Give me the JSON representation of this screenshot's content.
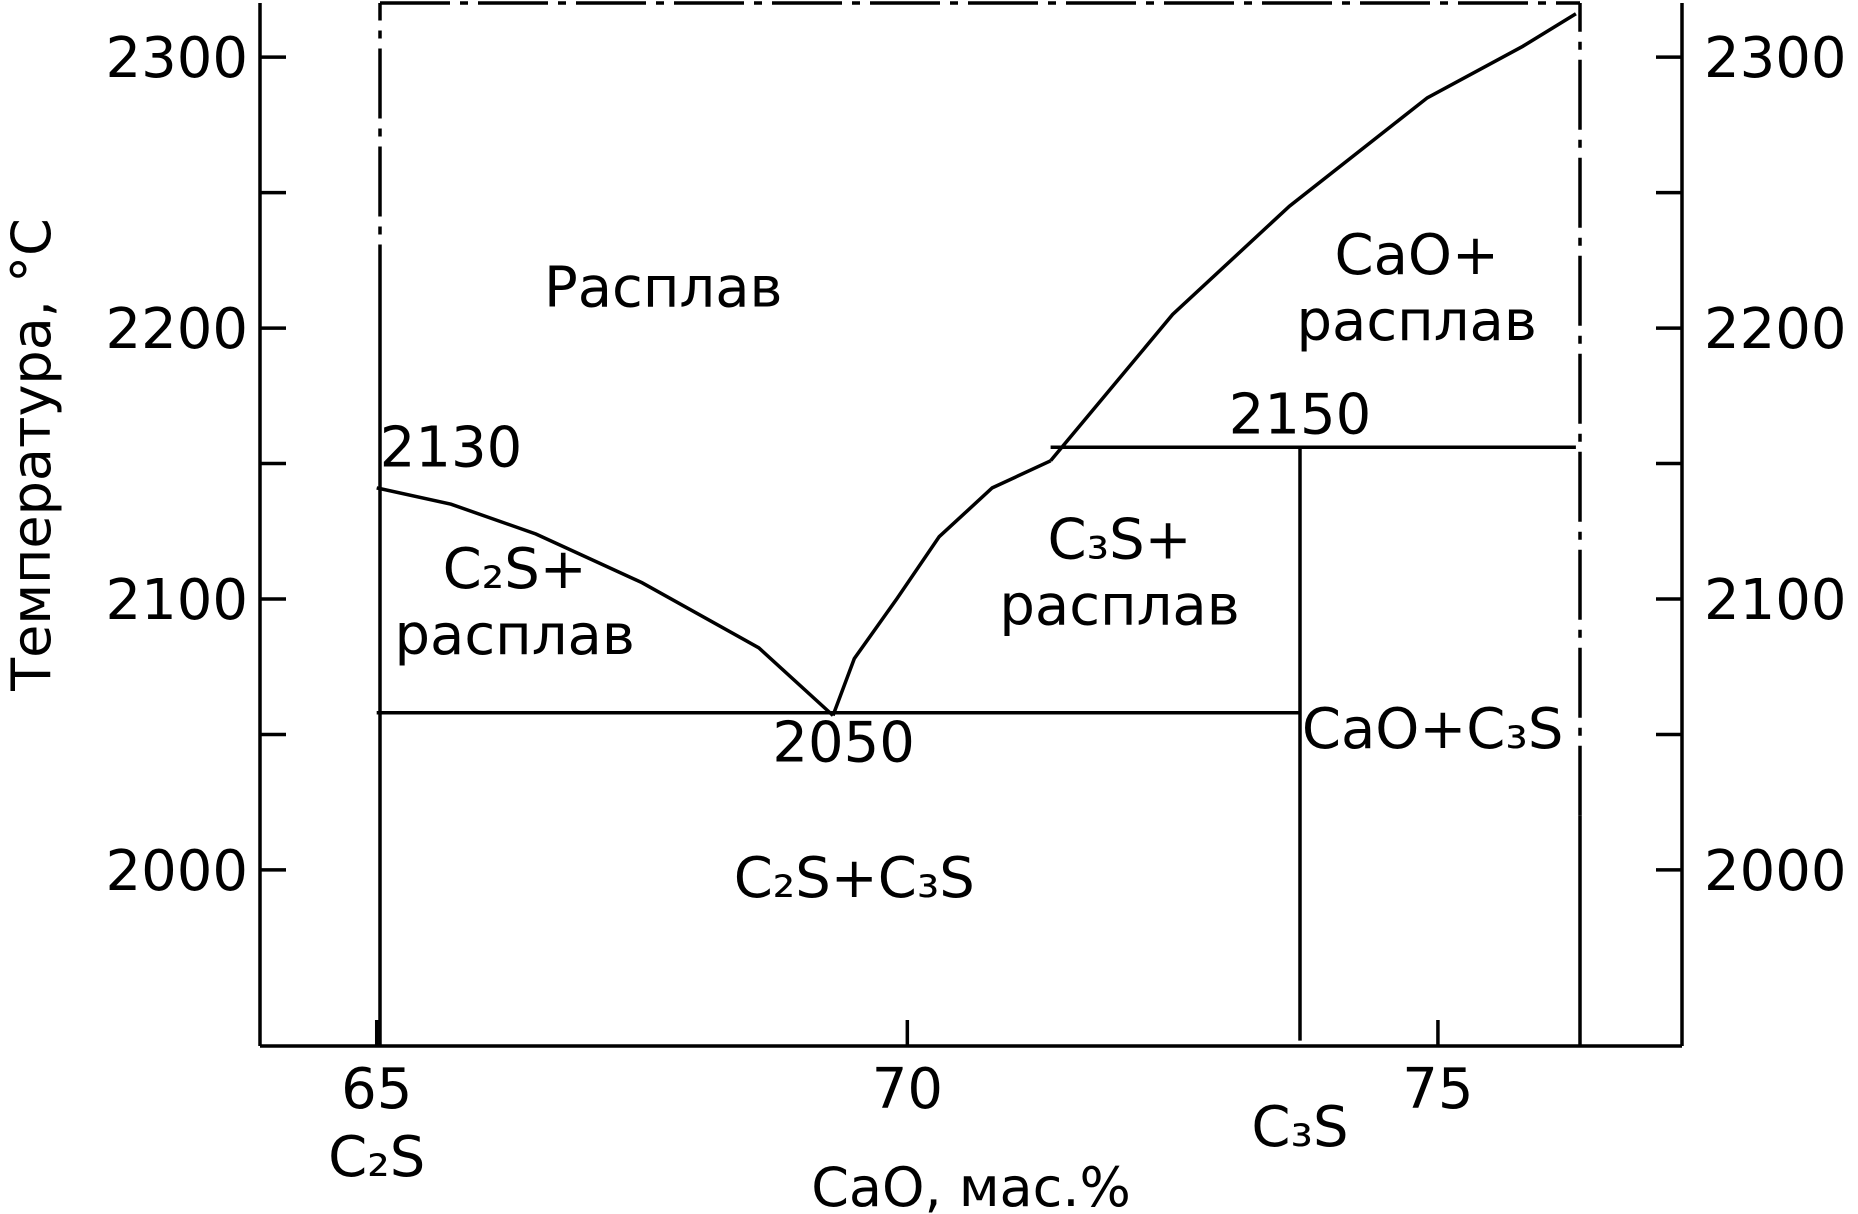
{
  "chart_data": {
    "type": "line",
    "title": "",
    "xlabel": "CaO, мас.%",
    "ylabel": "Температура, °C",
    "xlim": [
      63.9,
      77.3
    ],
    "ylim": [
      1935,
      2320
    ],
    "x_ticks": [
      65,
      70,
      75
    ],
    "x_tick_labels": [
      "65",
      "70",
      "75"
    ],
    "y_ticks": [
      2000,
      2100,
      2200,
      2300
    ],
    "y_tick_labels": [
      "2000",
      "2100",
      "2200",
      "2300"
    ],
    "y_minor_ticks": [
      2050,
      2150,
      2250
    ],
    "right_axis_tick_labels": [
      "2000",
      "2100",
      "2200",
      "2300"
    ],
    "compound_labels": [
      {
        "text": "C₂S",
        "x": 65
      },
      {
        "text": "C₃S",
        "x": 73.7
      }
    ],
    "grid": false,
    "series": [
      {
        "name": "",
        "points": [
          [
            65,
            2141
          ],
          [
            65.7,
            2135
          ],
          [
            66.5,
            2124
          ],
          [
            67.5,
            2106
          ],
          [
            68.6,
            2082
          ],
          [
            69.3,
            2057
          ]
        ]
      },
      {
        "name": "",
        "points": [
          [
            69.3,
            2057
          ],
          [
            69.5,
            2078
          ],
          [
            69.9,
            2100
          ],
          [
            70.3,
            2123
          ],
          [
            70.8,
            2141
          ],
          [
            71.35,
            2151
          ]
        ]
      },
      {
        "name": "",
        "points": [
          [
            71.35,
            2151
          ],
          [
            72.5,
            2205
          ],
          [
            73.6,
            2245
          ],
          [
            74.9,
            2285
          ],
          [
            75.8,
            2304
          ],
          [
            76.3,
            2316
          ]
        ]
      },
      {
        "name": "",
        "points": [
          [
            65,
            2058
          ],
          [
            73.7,
            2058
          ]
        ]
      },
      {
        "name": "",
        "points": [
          [
            71.35,
            2156
          ],
          [
            76.3,
            2156
          ]
        ]
      },
      {
        "name": "",
        "points": [
          [
            73.7,
            1937
          ],
          [
            73.7,
            2156
          ]
        ]
      }
    ],
    "point_labels": [
      {
        "text": "2130",
        "x": 65.7,
        "y": 2149
      },
      {
        "text": "2050",
        "x": 69.4,
        "y": 2040
      },
      {
        "text": "2150",
        "x": 73.7,
        "y": 2161
      }
    ],
    "region_labels": [
      {
        "lines": [
          "Расплав"
        ],
        "x": 67.7,
        "y": 2208
      },
      {
        "lines": [
          "CaO+",
          "расплав"
        ],
        "x": 74.8,
        "y": 2220
      },
      {
        "lines": [
          "C₂S+",
          "расплав"
        ],
        "x": 66.3,
        "y": 2104
      },
      {
        "lines": [
          "C₃S+",
          "расплав"
        ],
        "x": 72.0,
        "y": 2115
      },
      {
        "lines": [
          "CaO+C₃S"
        ],
        "x": 74.95,
        "y": 2045
      },
      {
        "lines": [
          "C₂S+C₃S"
        ],
        "x": 69.5,
        "y": 1990
      }
    ]
  }
}
